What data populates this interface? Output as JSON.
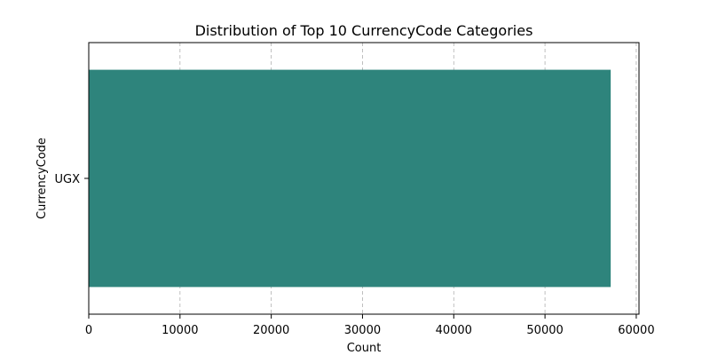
{
  "chart_data": {
    "type": "bar",
    "orientation": "horizontal",
    "title": "Distribution of Top 10 CurrencyCode Categories",
    "xlabel": "Count",
    "ylabel": "CurrencyCode",
    "categories": [
      "UGX"
    ],
    "values": [
      57200
    ],
    "xlim": [
      0,
      60300
    ],
    "xticks": [
      0,
      10000,
      20000,
      30000,
      40000,
      50000,
      60000
    ],
    "grid": "x-dashed",
    "bar_color": "#2e847c",
    "grid_color": "#b0b0b0"
  }
}
